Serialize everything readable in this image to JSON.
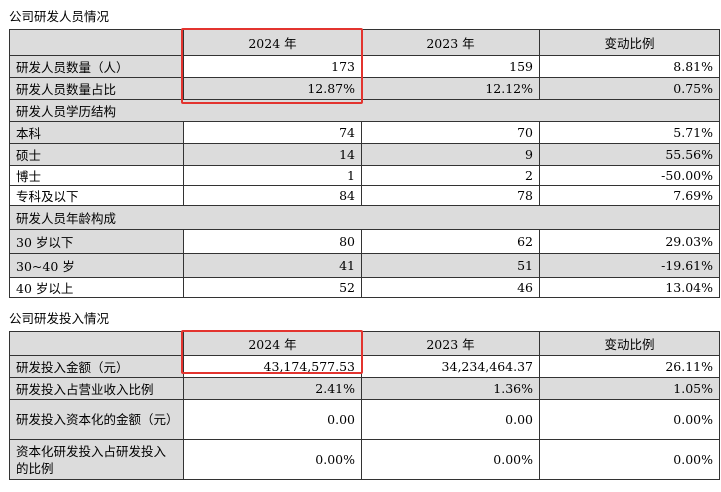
{
  "personnel": {
    "title": "公司研发人员情况",
    "headers": [
      "",
      "2024 年",
      "2023 年",
      "变动比例"
    ],
    "rows": [
      {
        "label": "研发人员数量（人）",
        "v2024": "173",
        "v2023": "159",
        "change": "8.81%"
      },
      {
        "label": "研发人员数量占比",
        "v2024": "12.87%",
        "v2023": "12.12%",
        "change": "0.75%"
      }
    ],
    "education_title": "研发人员学历结构",
    "education_rows": [
      {
        "label": "本科",
        "v2024": "74",
        "v2023": "70",
        "change": "5.71%"
      },
      {
        "label": "硕士",
        "v2024": "14",
        "v2023": "9",
        "change": "55.56%"
      },
      {
        "label": "博士",
        "v2024": "1",
        "v2023": "2",
        "change": "-50.00%"
      },
      {
        "label": "专科及以下",
        "v2024": "84",
        "v2023": "78",
        "change": "7.69%"
      }
    ],
    "age_title": "研发人员年龄构成",
    "age_rows": [
      {
        "label": "30 岁以下",
        "v2024": "80",
        "v2023": "62",
        "change": "29.03%"
      },
      {
        "label": "30~40 岁",
        "v2024": "41",
        "v2023": "51",
        "change": "-19.61%"
      },
      {
        "label": "40 岁以上",
        "v2024": "52",
        "v2023": "46",
        "change": "13.04%"
      }
    ]
  },
  "investment": {
    "title": "公司研发投入情况",
    "headers": [
      "",
      "2024 年",
      "2023 年",
      "变动比例"
    ],
    "rows": [
      {
        "label": "研发投入金额（元）",
        "v2024": "43,174,577.53",
        "v2023": "34,234,464.37",
        "change": "26.11%"
      },
      {
        "label": "研发投入占营业收入比例",
        "v2024": "2.41%",
        "v2023": "1.36%",
        "change": "1.05%"
      },
      {
        "label": "研发投入资本化的金额（元）",
        "v2024": "0.00",
        "v2023": "0.00",
        "change": "0.00%"
      },
      {
        "label": "资本化研发投入占研发投入的比例",
        "v2024": "0.00%",
        "v2023": "0.00%",
        "change": "0.00%"
      }
    ]
  },
  "colors": {
    "highlight_border": "#e3342f",
    "shaded_cell": "#dcdcdc"
  }
}
